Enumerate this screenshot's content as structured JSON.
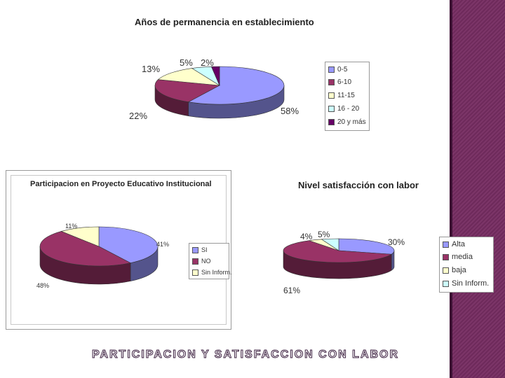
{
  "chart_data": [
    {
      "type": "pie",
      "title": "Años de permanencia en establecimiento",
      "categories": [
        "0-5",
        "6-10",
        "11-15",
        "16 - 20",
        "20 y más"
      ],
      "values": [
        58,
        22,
        13,
        5,
        2
      ],
      "value_labels": [
        "58%",
        "22%",
        "13%",
        "5%",
        "2%"
      ],
      "colors": [
        "#9999ff",
        "#993366",
        "#ffffcc",
        "#ccffff",
        "#660066"
      ],
      "legend_position": "right"
    },
    {
      "type": "pie",
      "title": "Participacion en Proyecto Educativo Institucional",
      "categories": [
        "SI",
        "NO",
        "Sin Inform."
      ],
      "values": [
        41,
        48,
        11
      ],
      "value_labels": [
        "41%",
        "48%",
        "11%"
      ],
      "colors": [
        "#9999ff",
        "#993366",
        "#ffffcc"
      ],
      "legend_position": "right"
    },
    {
      "type": "pie",
      "title": "Nivel satisfacción con labor",
      "categories": [
        "Alta",
        "media",
        "baja",
        "Sin Inform."
      ],
      "values": [
        30,
        61,
        4,
        5
      ],
      "value_labels": [
        "30%",
        "61%",
        "4%",
        "5%"
      ],
      "colors": [
        "#9999ff",
        "#993366",
        "#ffffcc",
        "#ccffff"
      ],
      "legend_position": "right"
    }
  ],
  "footer": "PARTICIPACION Y SATISFACCION CON LABOR"
}
